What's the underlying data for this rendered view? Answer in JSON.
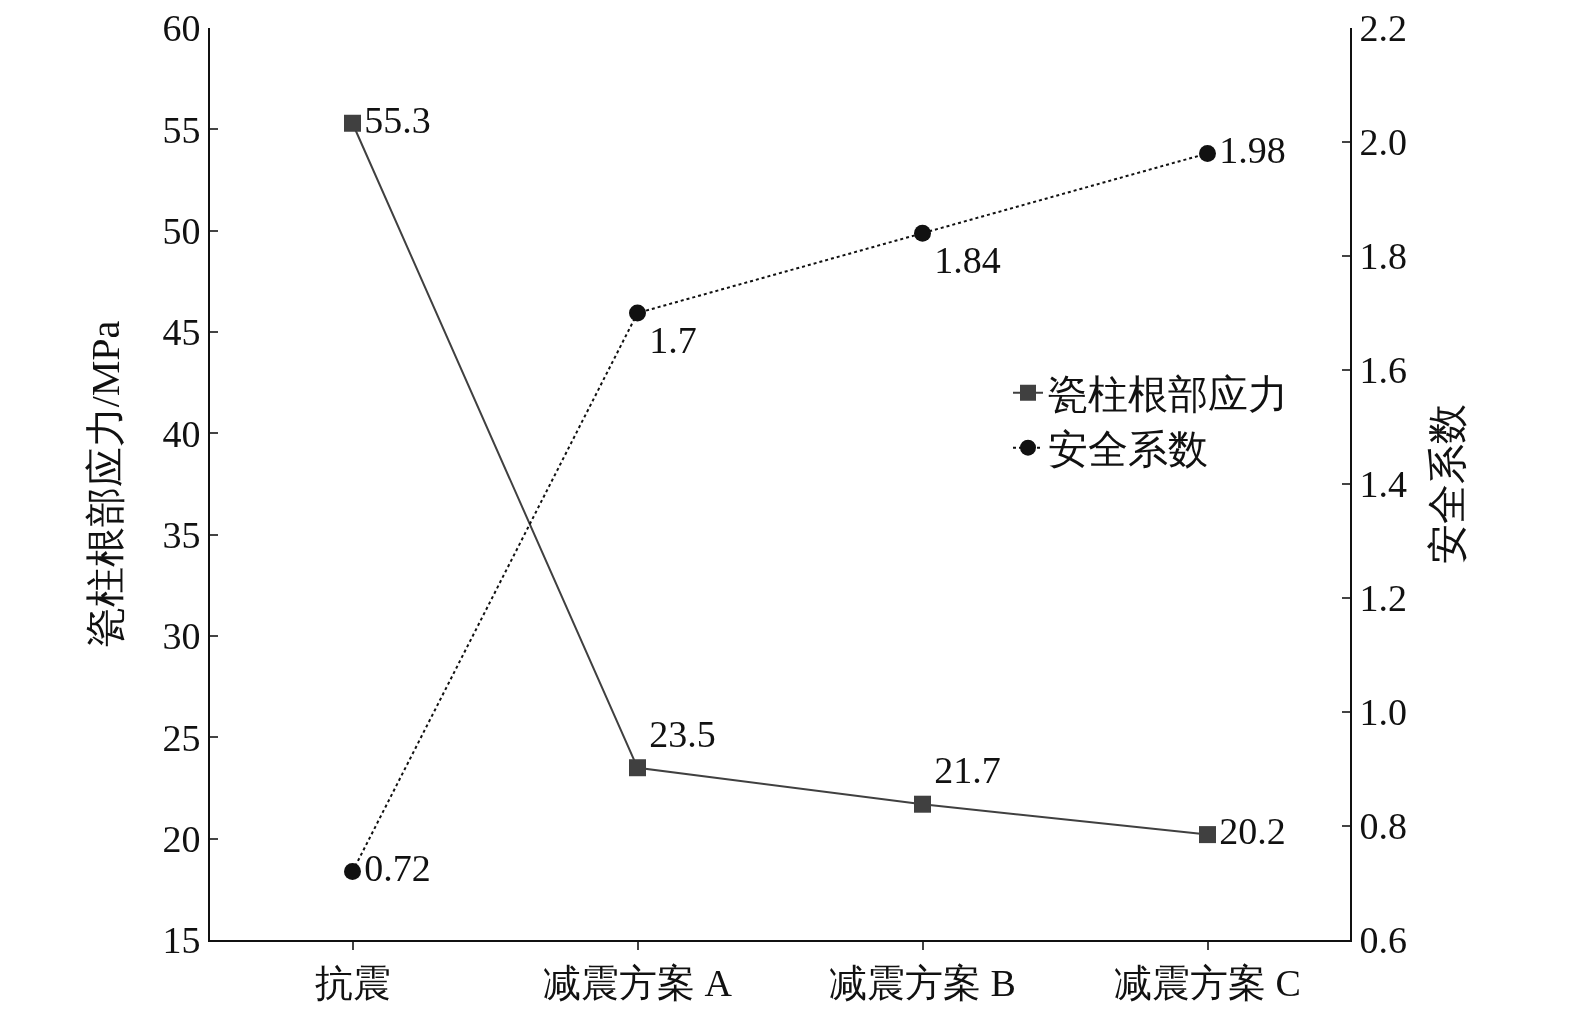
{
  "chart_data": {
    "type": "line",
    "categories": [
      "抗震",
      "减震方案 A",
      "减震方案 B",
      "减震方案 C"
    ],
    "ylabel": "瓷柱根部应力/MPa",
    "y2label": "安全系数",
    "ylim": [
      15,
      60
    ],
    "yticks": [
      15,
      20,
      25,
      30,
      35,
      40,
      45,
      50,
      55,
      60
    ],
    "y2lim": [
      0.6,
      2.2
    ],
    "y2ticks": [
      0.6,
      0.8,
      {
        "value": 1,
        "label": "1.0"
      },
      1.2,
      1.4,
      1.6,
      1.8,
      {
        "value": 2,
        "label": "2.0"
      },
      2.2
    ],
    "data_labels": true,
    "grid": false,
    "legend": "right",
    "series": [
      {
        "name": "瓷柱根部应力",
        "color": "#404040",
        "marker": "square",
        "line_style": "solid",
        "values": [
          55.3,
          23.5,
          21.7,
          20.2
        ]
      },
      {
        "name": "安全系数",
        "color": "#111111",
        "marker": "circle",
        "line_style": "dotted",
        "axis": "y2",
        "values": [
          0.72,
          1.7,
          1.84,
          1.98
        ]
      }
    ]
  }
}
